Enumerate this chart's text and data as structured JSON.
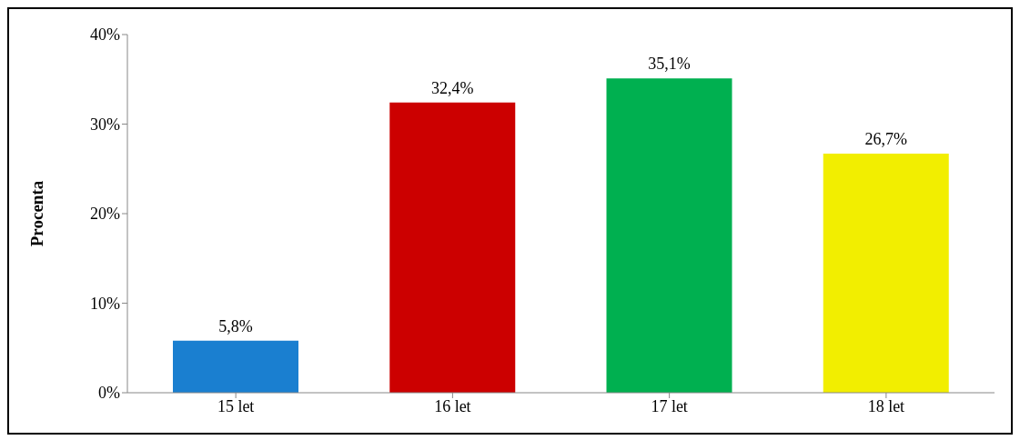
{
  "chart_data": {
    "type": "bar",
    "ylabel": "Procenta",
    "categories": [
      "15 let",
      "16 let",
      "17 let",
      "18 let"
    ],
    "values": [
      5.8,
      32.4,
      35.1,
      26.7
    ],
    "colors": [
      "#1a7fd0",
      "#cc0000",
      "#00b050",
      "#f2ee00"
    ],
    "value_labels": [
      "5,8%",
      "32,4%",
      "35,1%",
      "26,7%"
    ],
    "ylim": [
      0,
      40
    ],
    "yticks": [
      {
        "value": 0,
        "label": "0%"
      },
      {
        "value": 10,
        "label": "10%"
      },
      {
        "value": 20,
        "label": "20%"
      },
      {
        "value": 30,
        "label": "30%"
      },
      {
        "value": 40,
        "label": "40%"
      }
    ],
    "grid": false,
    "legend": false
  }
}
